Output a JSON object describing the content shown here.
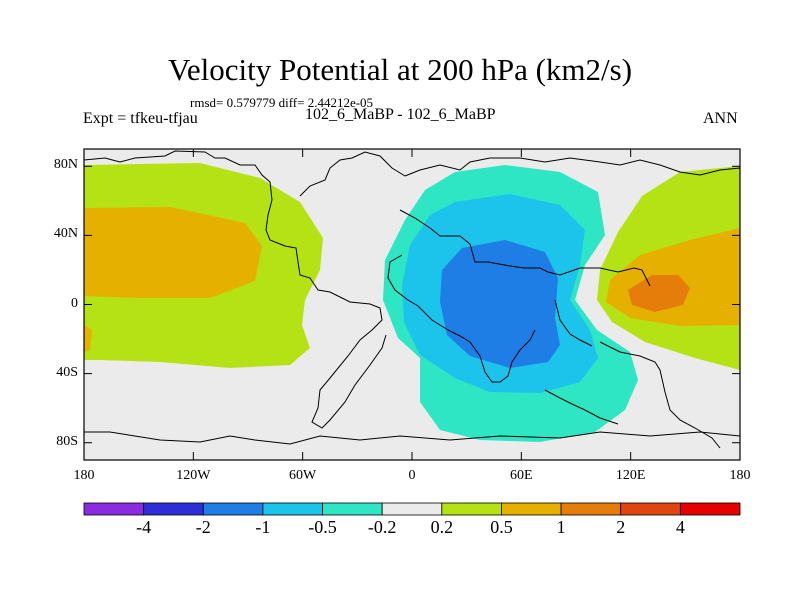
{
  "title": "Velocity Potential at 200 hPa (km2/s)",
  "stats": "rmsd= 0.579779 diff= 2.44212e-05",
  "expt_label": "Expt = tfkeu-tfjau",
  "subtitle": "102_6_MaBP - 102_6_MaBP",
  "season": "ANN",
  "lat_ticks": [
    "80N",
    "40N",
    "0",
    "40S",
    "80S"
  ],
  "lat_values": [
    80,
    40,
    0,
    -40,
    -80
  ],
  "lon_ticks": [
    "180",
    "120W",
    "60W",
    "0",
    "60E",
    "120E",
    "180"
  ],
  "lon_values": [
    -180,
    -120,
    -60,
    0,
    60,
    120,
    180
  ],
  "colorbar": {
    "labels": [
      "-4",
      "-2",
      "-1",
      "-0.5",
      "-0.2",
      "0.2",
      "0.5",
      "1",
      "2",
      "4"
    ],
    "colors": [
      "#8a2be2",
      "#2e2ed8",
      "#1e7ee6",
      "#1cc3ea",
      "#2fe6c4",
      "#ebebeb",
      "#b5e214",
      "#e6b000",
      "#e47d0a",
      "#e24410",
      "#e60000"
    ]
  },
  "fill_colors": {
    "neutral": "#ebebeb",
    "pos_0_2": "#b5e214",
    "pos_0_5": "#e6b000",
    "pos_1": "#e47d0a",
    "neg_0_2": "#2fe6c4",
    "neg_0_5": "#1cc3ea",
    "neg_1": "#1e7ee6"
  }
}
